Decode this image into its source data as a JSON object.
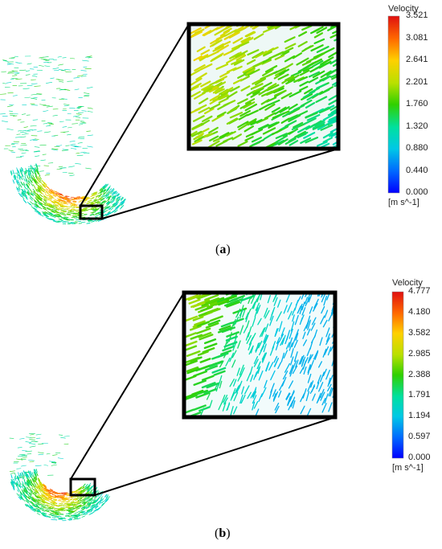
{
  "panels": [
    {
      "id": "a",
      "caption_prefix": "(",
      "caption_letter": "a",
      "caption_suffix": ")",
      "legend": {
        "title": "Velocity",
        "ticks": [
          "3.521",
          "3.081",
          "2.641",
          "2.201",
          "1.760",
          "1.320",
          "0.880",
          "0.440",
          "0.000"
        ],
        "unit": "[m s^-1]"
      }
    },
    {
      "id": "b",
      "caption_prefix": "(",
      "caption_letter": "b",
      "caption_suffix": ")",
      "legend": {
        "title": "Velocity",
        "ticks": [
          "4.777",
          "4.180",
          "3.582",
          "2.985",
          "2.388",
          "1.791",
          "1.194",
          "0.597",
          "0.000"
        ],
        "unit": "[m s^-1]"
      }
    }
  ],
  "colormap": [
    "#0000ff",
    "#0066ff",
    "#00c8e6",
    "#00e0a0",
    "#30d000",
    "#b8e000",
    "#ffd000",
    "#ff6a00",
    "#e01010"
  ]
}
